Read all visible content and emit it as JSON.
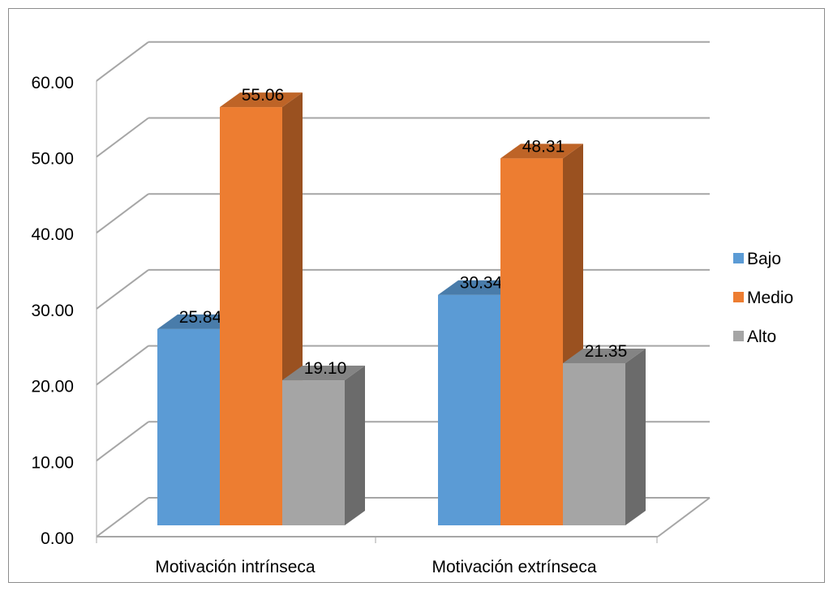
{
  "chart_data": {
    "type": "bar",
    "style": "3d-clustered-column",
    "categories": [
      "Motivación intrínseca",
      "Motivación extrínseca"
    ],
    "series": [
      {
        "name": "Bajo",
        "values": [
          25.84,
          30.34
        ],
        "color": "#5B9BD5"
      },
      {
        "name": "Medio",
        "values": [
          55.06,
          48.31
        ],
        "color": "#ED7D31"
      },
      {
        "name": "Alto",
        "values": [
          19.1,
          21.35
        ],
        "color": "#A5A5A5"
      }
    ],
    "data_labels": [
      [
        "25.84",
        "30.34"
      ],
      [
        "55.06",
        "48.31"
      ],
      [
        "19.10",
        "21.35"
      ]
    ],
    "y_ticks": [
      "0.00",
      "10.00",
      "20.00",
      "30.00",
      "40.00",
      "50.00",
      "60.00"
    ],
    "ylim": [
      0,
      60
    ],
    "grid": true,
    "legend_position": "right"
  }
}
